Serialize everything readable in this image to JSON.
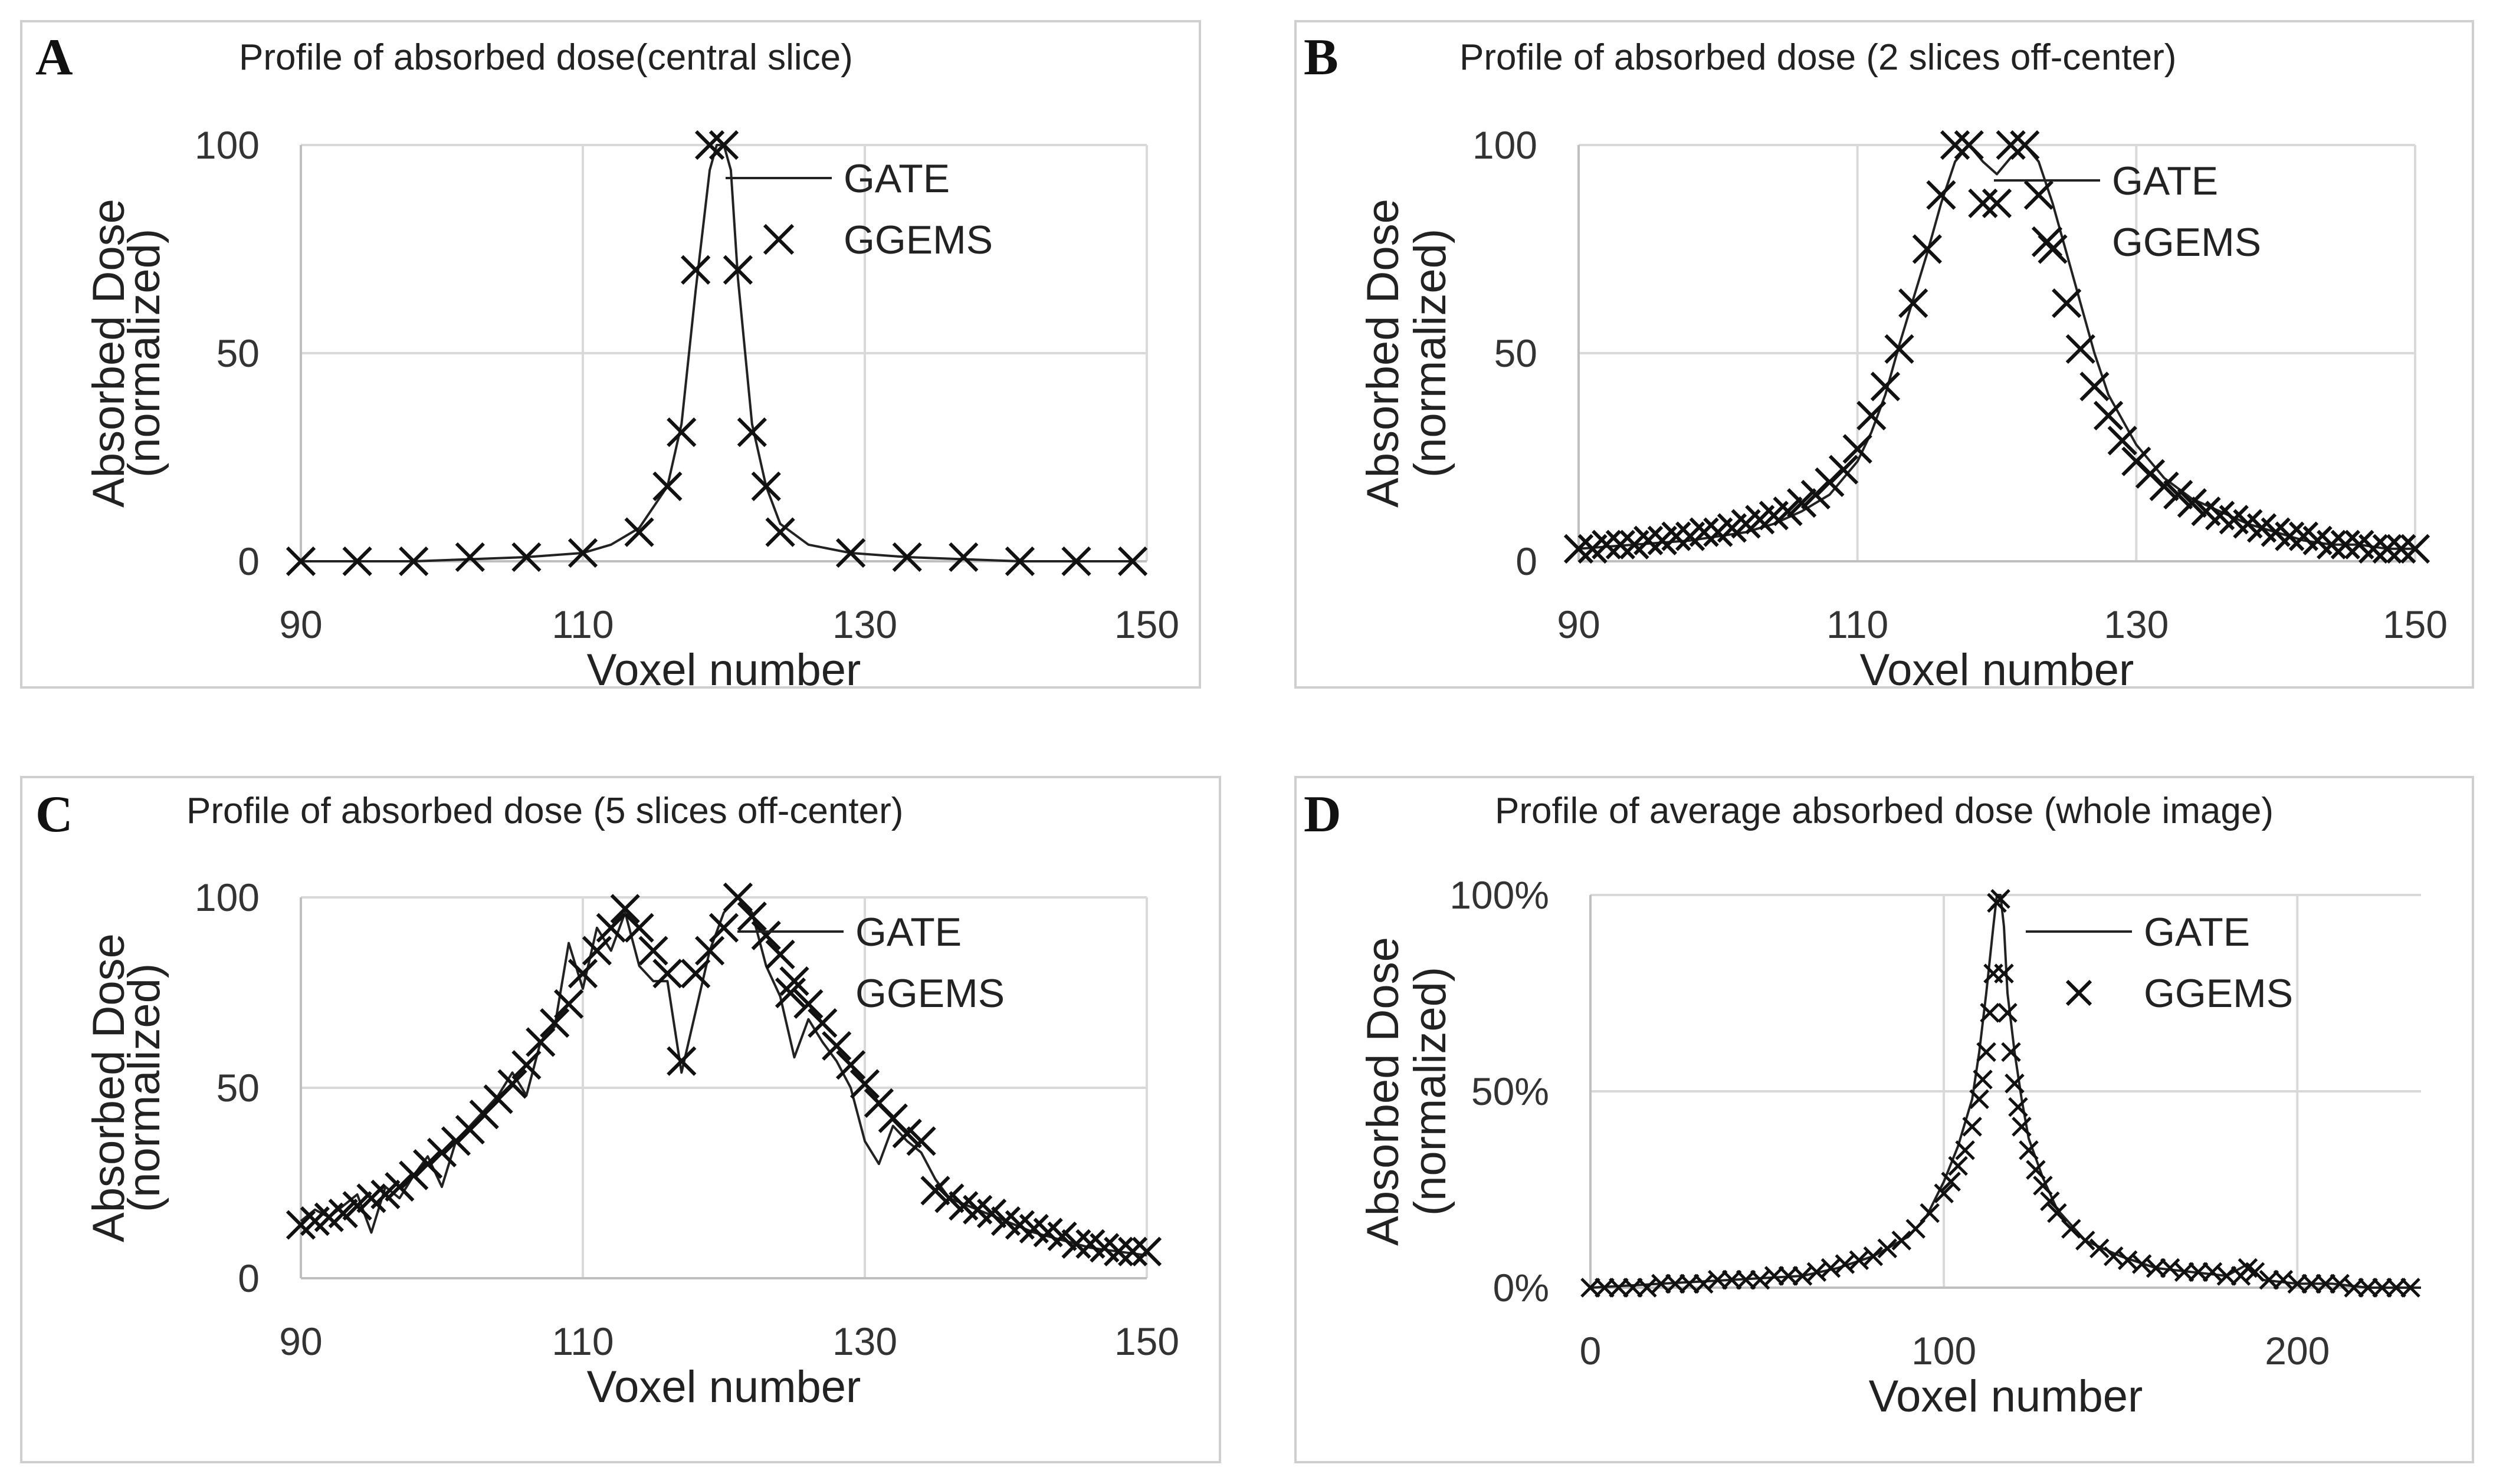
{
  "chart_data": [
    {
      "panel": "A",
      "type": "line",
      "title": "Profile of absorbed dose(central slice)",
      "xlabel": "Voxel number",
      "ylabel": [
        "Absorbed Dose",
        "(normalized)"
      ],
      "xlim": [
        90,
        150
      ],
      "ylim": [
        0,
        100
      ],
      "xticks": [
        90,
        110,
        130,
        150
      ],
      "yticks": [
        0,
        50,
        100
      ],
      "ytick_labels": [
        "0",
        "50",
        "100"
      ],
      "legend": {
        "position": "top-right",
        "entries": [
          "GATE",
          "GGEMS"
        ]
      },
      "series": [
        {
          "name": "GATE",
          "style": "line",
          "x": [
            90,
            94,
            98,
            102,
            106,
            110,
            112,
            114,
            116,
            117,
            118,
            119,
            119.5,
            120,
            120.5,
            121,
            122,
            123,
            124,
            126,
            129,
            133,
            137,
            141,
            145,
            149
          ],
          "y": [
            0,
            0,
            0,
            0.5,
            1,
            2,
            4,
            8,
            18,
            33,
            65,
            94,
            100,
            100,
            94,
            68,
            33,
            18,
            9,
            4,
            2,
            1,
            0.5,
            0,
            0,
            0
          ]
        },
        {
          "name": "GGEMS",
          "style": "marker",
          "x": [
            90,
            94,
            98,
            102,
            106,
            110,
            114,
            116,
            117,
            118,
            119,
            120,
            121,
            122,
            123,
            124,
            129,
            133,
            137,
            141,
            145,
            149
          ],
          "y": [
            0,
            0,
            0,
            1,
            1,
            2,
            7,
            18,
            31,
            70,
            100,
            100,
            70,
            31,
            18,
            7,
            2,
            1,
            1,
            0,
            0,
            0
          ]
        }
      ]
    },
    {
      "panel": "B",
      "type": "line",
      "title": "Profile of absorbed dose (2 slices off-center)",
      "xlabel": "Voxel number",
      "ylabel": [
        "Absorbed Dose",
        "(normalized)"
      ],
      "xlim": [
        90,
        150
      ],
      "ylim": [
        0,
        100
      ],
      "xticks": [
        90,
        110,
        130,
        150
      ],
      "yticks": [
        0,
        50,
        100
      ],
      "ytick_labels": [
        "0",
        "50",
        "100"
      ],
      "legend": {
        "position": "top-right",
        "entries": [
          "GATE",
          "GGEMS"
        ]
      },
      "series": [
        {
          "name": "GATE",
          "style": "line",
          "x": [
            90,
            94,
            98,
            102,
            104,
            106,
            108,
            110,
            111,
            112,
            113,
            114,
            115,
            116,
            117,
            118,
            119,
            120,
            121,
            122,
            123,
            124,
            125,
            126,
            127,
            128,
            130,
            132,
            134,
            136,
            138,
            140,
            142,
            144,
            146,
            148,
            150
          ],
          "y": [
            3,
            4,
            5,
            7,
            9,
            12,
            16,
            24,
            31,
            40,
            52,
            63,
            74,
            86,
            96,
            100,
            96,
            93,
            97,
            100,
            96,
            86,
            74,
            62,
            50,
            40,
            28,
            20,
            15,
            12,
            9,
            7,
            5,
            4,
            4,
            3,
            3
          ]
        },
        {
          "name": "GGEMS",
          "style": "marker",
          "x": [
            90,
            91,
            92,
            93,
            94,
            95,
            96,
            97,
            98,
            99,
            100,
            101,
            102,
            103,
            104,
            105,
            106,
            107,
            108,
            109,
            110,
            111,
            112,
            113,
            114,
            115,
            116,
            117,
            118,
            119,
            120,
            121,
            122,
            123,
            124,
            125,
            126,
            127,
            128,
            129,
            130,
            131,
            132,
            133,
            134,
            135,
            136,
            137,
            138,
            139,
            140,
            141,
            142,
            143,
            144,
            145,
            146,
            147,
            148,
            149,
            150
          ],
          "y": [
            3,
            3,
            4,
            4,
            4,
            5,
            5,
            6,
            6,
            7,
            7,
            8,
            9,
            10,
            11,
            12,
            14,
            16,
            19,
            22,
            27,
            35,
            42,
            51,
            62,
            75,
            88,
            100,
            100,
            86,
            86,
            100,
            100,
            88,
            75,
            62,
            51,
            42,
            35,
            29,
            24,
            21,
            18,
            16,
            14,
            12,
            11,
            10,
            9,
            8,
            7,
            6,
            6,
            5,
            4,
            4,
            4,
            3,
            3,
            3,
            3
          ]
        }
      ]
    },
    {
      "panel": "C",
      "type": "line",
      "title": "Profile of absorbed dose (5 slices off-center)",
      "xlabel": "Voxel number",
      "ylabel": [
        "Absorbed Dose",
        "(normalized)"
      ],
      "xlim": [
        90,
        150
      ],
      "ylim": [
        0,
        100
      ],
      "xticks": [
        90,
        110,
        130,
        150
      ],
      "yticks": [
        0,
        50,
        100
      ],
      "ytick_labels": [
        "0",
        "50",
        "100"
      ],
      "legend": {
        "position": "top-right",
        "entries": [
          "GATE",
          "GGEMS"
        ]
      },
      "series": [
        {
          "name": "GATE",
          "style": "line",
          "x": [
            90,
            91,
            92,
            93,
            94,
            95,
            96,
            97,
            98,
            99,
            100,
            101,
            102,
            103,
            104,
            105,
            106,
            107,
            108,
            109,
            110,
            111,
            112,
            113,
            114,
            115,
            116,
            117,
            118,
            119,
            120,
            121,
            122,
            123,
            124,
            125,
            126,
            127,
            128,
            129,
            130,
            131,
            132,
            133,
            134,
            135,
            136,
            138,
            140,
            142,
            144,
            146,
            148,
            150
          ],
          "y": [
            15,
            18,
            16,
            19,
            22,
            12,
            24,
            21,
            27,
            32,
            24,
            36,
            40,
            44,
            48,
            54,
            48,
            62,
            66,
            88,
            76,
            92,
            86,
            96,
            82,
            78,
            78,
            54,
            70,
            86,
            96,
            100,
            96,
            82,
            74,
            58,
            68,
            62,
            57,
            50,
            36,
            30,
            40,
            36,
            33,
            26,
            21,
            18,
            15,
            12,
            10,
            8,
            7,
            6
          ]
        },
        {
          "name": "GGEMS",
          "style": "marker",
          "x": [
            90,
            91,
            92,
            93,
            94,
            95,
            96,
            97,
            98,
            99,
            100,
            101,
            102,
            103,
            104,
            105,
            106,
            107,
            108,
            109,
            110,
            111,
            112,
            113,
            114,
            115,
            116,
            117,
            118,
            119,
            120,
            121,
            122,
            123,
            124,
            125,
            126,
            127,
            128,
            129,
            130,
            131,
            132,
            133,
            134,
            135,
            136,
            137,
            138,
            139,
            140,
            141,
            142,
            143,
            144,
            145,
            146,
            147,
            148,
            149,
            150
          ],
          "y": [
            14,
            15,
            16,
            17,
            19,
            21,
            22,
            24,
            27,
            30,
            33,
            36,
            39,
            43,
            47,
            51,
            56,
            62,
            67,
            72,
            80,
            86,
            92,
            97,
            92,
            86,
            80,
            57,
            80,
            86,
            92,
            100,
            95,
            90,
            85,
            78,
            72,
            67,
            61,
            56,
            51,
            46,
            42,
            38,
            36,
            23,
            21,
            19,
            18,
            17,
            15,
            14,
            13,
            12,
            11,
            9,
            9,
            8,
            7,
            7,
            7
          ]
        }
      ]
    },
    {
      "panel": "D",
      "type": "line",
      "title": "Profile of average absorbed dose (whole image)",
      "xlabel": "Voxel number",
      "ylabel": [
        "Absorbed Dose",
        "(normalized)"
      ],
      "xlim": [
        0,
        235
      ],
      "ylim": [
        0,
        100
      ],
      "xticks": [
        0,
        100,
        200
      ],
      "yticks": [
        0,
        50,
        100
      ],
      "ytick_labels": [
        "0%",
        "50%",
        "100%"
      ],
      "legend": {
        "position": "top-right",
        "entries": [
          "GATE",
          "GGEMS"
        ]
      },
      "series": [
        {
          "name": "GATE",
          "style": "line",
          "x": [
            0,
            20,
            40,
            60,
            70,
            80,
            90,
            95,
            100,
            104,
            108,
            110,
            112,
            114,
            115,
            116,
            117,
            118,
            120,
            122,
            124,
            128,
            132,
            140,
            150,
            160,
            170,
            180,
            186,
            190,
            200,
            210,
            220,
            235
          ],
          "y": [
            0,
            1,
            2,
            3,
            5,
            8,
            13,
            18,
            27,
            36,
            48,
            60,
            75,
            92,
            100,
            100,
            92,
            75,
            60,
            48,
            38,
            28,
            20,
            12,
            8,
            5,
            4,
            3,
            6,
            2,
            1,
            1,
            0,
            0
          ]
        },
        {
          "name": "GGEMS",
          "style": "marker",
          "x": [
            0,
            4,
            8,
            12,
            16,
            20,
            24,
            28,
            32,
            36,
            40,
            44,
            48,
            52,
            56,
            60,
            64,
            68,
            72,
            76,
            80,
            84,
            88,
            92,
            96,
            100,
            102,
            104,
            106,
            108,
            110,
            111,
            112,
            113,
            114,
            115,
            116,
            117,
            118,
            119,
            120,
            121,
            122,
            124,
            126,
            128,
            130,
            132,
            136,
            140,
            144,
            148,
            152,
            156,
            160,
            164,
            168,
            172,
            176,
            180,
            184,
            186,
            188,
            192,
            196,
            200,
            204,
            208,
            212,
            216,
            220,
            224,
            228,
            232
          ],
          "y": [
            0,
            0,
            0,
            0,
            0,
            1,
            1,
            1,
            1,
            2,
            2,
            2,
            2,
            3,
            3,
            3,
            4,
            5,
            6,
            7,
            8,
            10,
            12,
            15,
            19,
            24,
            27,
            31,
            35,
            41,
            48,
            53,
            60,
            70,
            80,
            98,
            99,
            80,
            70,
            60,
            52,
            46,
            41,
            35,
            30,
            26,
            22,
            19,
            15,
            12,
            10,
            8,
            7,
            6,
            5,
            5,
            4,
            4,
            4,
            3,
            3,
            5,
            4,
            2,
            2,
            1,
            1,
            1,
            1,
            0,
            0,
            0,
            0,
            0
          ]
        }
      ]
    }
  ]
}
